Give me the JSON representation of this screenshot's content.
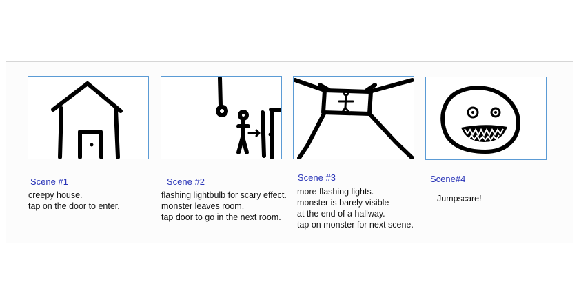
{
  "scenes": [
    {
      "title": "Scene #1",
      "lines": [
        "creepy house.",
        "tap on the door to enter."
      ],
      "sketch": "house-icon"
    },
    {
      "title": "Scene #2",
      "lines": [
        "flashing lightbulb for scary effect.",
        "monster leaves room.",
        "tap door to go in the next room."
      ],
      "sketch": "lightbulb-door-icon"
    },
    {
      "title": "Scene #3",
      "lines": [
        "more flashing lights.",
        "monster is barely visible",
        "at the end of a hallway.",
        "tap on monster for next scene."
      ],
      "sketch": "hallway-icon"
    },
    {
      "title": "Scene#4",
      "lines": [
        "Jumpscare!"
      ],
      "sketch": "monster-face-icon"
    }
  ],
  "colors": {
    "frame_border": "#5b9bd5",
    "title_text": "#2a35b8",
    "body_text": "#111111"
  }
}
